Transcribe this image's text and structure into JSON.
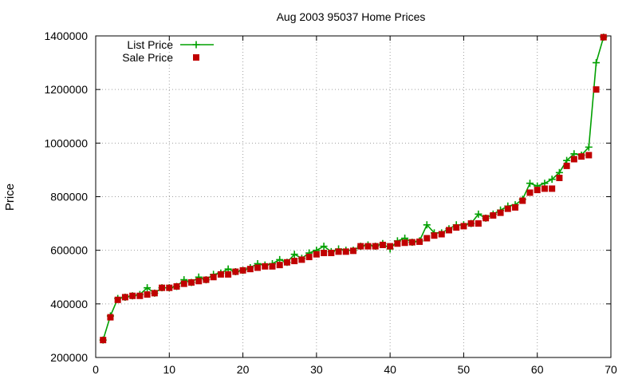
{
  "chart_data": {
    "type": "line",
    "title": "Aug 2003 95037 Home Prices",
    "xlabel": "",
    "ylabel": "Price",
    "xlim": [
      0,
      70
    ],
    "ylim": [
      200000,
      1400000
    ],
    "xticks": [
      0,
      10,
      20,
      30,
      40,
      50,
      60,
      70
    ],
    "yticks": [
      200000,
      400000,
      600000,
      800000,
      1000000,
      1200000,
      1400000
    ],
    "grid": true,
    "legend_position": "top-left",
    "x": [
      1,
      2,
      3,
      4,
      5,
      6,
      7,
      8,
      9,
      10,
      11,
      12,
      13,
      14,
      15,
      16,
      17,
      18,
      19,
      20,
      21,
      22,
      23,
      24,
      25,
      26,
      27,
      28,
      29,
      30,
      31,
      32,
      33,
      34,
      35,
      36,
      37,
      38,
      39,
      40,
      41,
      42,
      43,
      44,
      45,
      46,
      47,
      48,
      49,
      50,
      51,
      52,
      53,
      54,
      55,
      56,
      57,
      58,
      59,
      60,
      61,
      62,
      63,
      64,
      65,
      66,
      67,
      68,
      69
    ],
    "series": [
      {
        "name": "List Price",
        "color": "#00a000",
        "marker": "plus",
        "line": true,
        "values": [
          265000,
          355000,
          420000,
          425000,
          430000,
          435000,
          460000,
          440000,
          460000,
          460000,
          465000,
          490000,
          480000,
          500000,
          490000,
          510000,
          515000,
          530000,
          520000,
          525000,
          535000,
          550000,
          545000,
          550000,
          565000,
          555000,
          585000,
          570000,
          590000,
          600000,
          615000,
          595000,
          605000,
          600000,
          600000,
          615000,
          620000,
          615000,
          625000,
          605000,
          635000,
          645000,
          630000,
          635000,
          695000,
          665000,
          665000,
          680000,
          695000,
          695000,
          700000,
          735000,
          720000,
          735000,
          750000,
          765000,
          770000,
          790000,
          850000,
          840000,
          850000,
          865000,
          890000,
          935000,
          960000,
          955000,
          985000,
          1300000,
          1395000
        ]
      },
      {
        "name": "Sale Price",
        "color": "#c00000",
        "marker": "square",
        "line": false,
        "values": [
          265000,
          350000,
          415000,
          425000,
          430000,
          430000,
          435000,
          440000,
          460000,
          460000,
          465000,
          475000,
          480000,
          485000,
          490000,
          500000,
          510000,
          510000,
          520000,
          525000,
          530000,
          535000,
          540000,
          540000,
          545000,
          555000,
          560000,
          565000,
          575000,
          585000,
          590000,
          590000,
          595000,
          595000,
          598000,
          615000,
          615000,
          615000,
          620000,
          615000,
          625000,
          628000,
          630000,
          632000,
          645000,
          655000,
          660000,
          675000,
          685000,
          690000,
          700000,
          700000,
          720000,
          730000,
          740000,
          755000,
          760000,
          785000,
          815000,
          825000,
          830000,
          830000,
          870000,
          915000,
          940000,
          950000,
          955000,
          1200000,
          1395000
        ]
      }
    ]
  }
}
